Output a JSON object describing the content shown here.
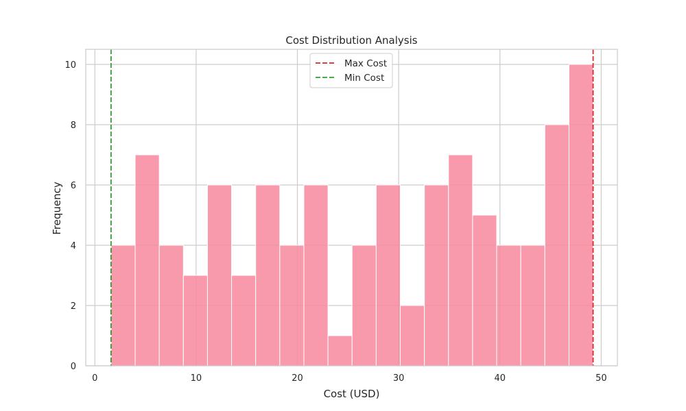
{
  "chart_data": {
    "type": "bar",
    "title": "Cost Distribution Analysis",
    "xlabel": "Cost (USD)",
    "ylabel": "Frequency",
    "xlim": [
      -0.9,
      51.6
    ],
    "ylim": [
      0,
      10.5
    ],
    "xticks": [
      0,
      10,
      20,
      30,
      40,
      50
    ],
    "yticks": [
      0,
      2,
      4,
      6,
      8,
      10
    ],
    "grid": true,
    "legend_position": "top-center",
    "bin_edges": [
      1.6,
      3.98,
      6.36,
      8.74,
      11.12,
      13.5,
      15.88,
      18.26,
      20.64,
      23.02,
      25.4,
      27.78,
      30.16,
      32.54,
      34.92,
      37.3,
      39.68,
      42.06,
      44.44,
      46.82,
      49.2
    ],
    "values": [
      4,
      7,
      4,
      3,
      6,
      3,
      6,
      4,
      6,
      1,
      4,
      6,
      2,
      6,
      7,
      5,
      4,
      4,
      8,
      10
    ],
    "bar_color": "#f7889e",
    "reference_lines": [
      {
        "name": "Max Cost",
        "x": 49.2,
        "color": "#d62728",
        "style": "dashed"
      },
      {
        "name": "Min Cost",
        "x": 1.6,
        "color": "#2ca02c",
        "style": "dashed"
      }
    ],
    "legend": [
      "Max Cost",
      "Min Cost"
    ]
  }
}
